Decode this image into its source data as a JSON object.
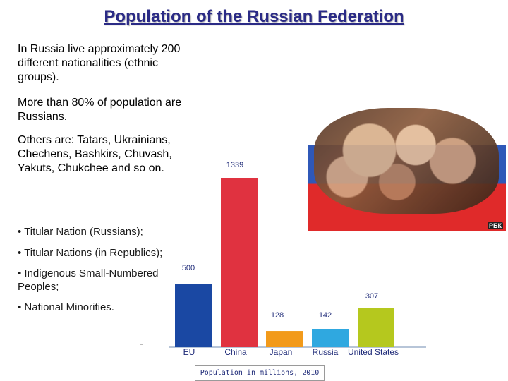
{
  "slide": {
    "title": "Population of the Russian Federation",
    "paragraphs": [
      "In Russia live approximately 200 different nationalities (ethnic groups).",
      "More than 80% of population are Russians.",
      "Others are: Tatars, Ukrainians, Chechens, Bashkirs, Chuvash, Yakuts, Chukchee and so on."
    ],
    "bullets": [
      "• Titular Nation (Russians);",
      "• Titular Nations (in Republics);",
      "• Indigenous Small-Numbered Peoples;",
      "• National Minorities."
    ],
    "photo_logo": "РБК"
  },
  "chart_data": {
    "type": "bar",
    "categories": [
      "EU",
      "China",
      "Japan",
      "Russia",
      "United States"
    ],
    "values": [
      500,
      1339,
      128,
      142,
      307
    ],
    "value_labels": [
      "500",
      "1339",
      "128",
      "142",
      "307"
    ],
    "colors": [
      "#1a48a3",
      "#e03240",
      "#f29a1a",
      "#2fa8e0",
      "#b5c81e"
    ],
    "caption": "Population in millions, 2010",
    "ylim": [
      0,
      1400
    ],
    "grid": false,
    "legend": "none"
  }
}
